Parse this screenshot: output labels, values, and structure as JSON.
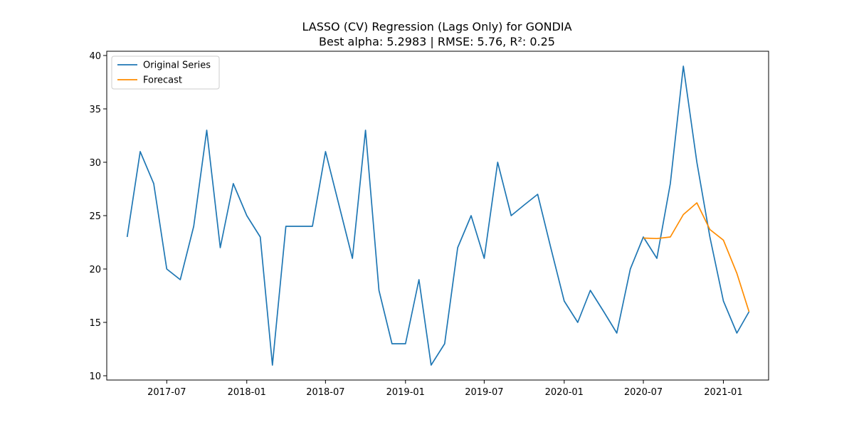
{
  "chart_data": {
    "type": "line",
    "title": "LASSO (CV) Regression (Lags Only) for GONDIA",
    "subtitle": "Best alpha: 5.2983 | RMSE: 5.76, R²: 0.25",
    "xlabel": "",
    "ylabel": "",
    "x_ticks": [
      "2017-07",
      "2018-01",
      "2018-07",
      "2019-01",
      "2019-07",
      "2020-01",
      "2020-07",
      "2021-01"
    ],
    "x_range": [
      "2017-02-13",
      "2021-04-15"
    ],
    "y_ticks": [
      10,
      15,
      20,
      25,
      30,
      35,
      40
    ],
    "ylim": [
      9.6,
      40.4
    ],
    "grid": false,
    "legend_position": "top-left",
    "series": [
      {
        "name": "Original Series",
        "color": "#1f77b4",
        "x": [
          "2017-04",
          "2017-05",
          "2017-06",
          "2017-07",
          "2017-08",
          "2017-09",
          "2017-10",
          "2017-11",
          "2017-12",
          "2018-01",
          "2018-02",
          "2018-03",
          "2018-04",
          "2018-05",
          "2018-06",
          "2018-07",
          "2018-08",
          "2018-09",
          "2018-10",
          "2018-11",
          "2018-12",
          "2019-01",
          "2019-02",
          "2019-03",
          "2019-04",
          "2019-05",
          "2019-06",
          "2019-07",
          "2019-08",
          "2019-09",
          "2019-10",
          "2019-11",
          "2019-12",
          "2020-01",
          "2020-02",
          "2020-03",
          "2020-04",
          "2020-05",
          "2020-06",
          "2020-07",
          "2020-08",
          "2020-09",
          "2020-10",
          "2020-11",
          "2020-12",
          "2021-01",
          "2021-02",
          "2021-03"
        ],
        "values": [
          23,
          31,
          28,
          20,
          19,
          24,
          33,
          22,
          28,
          25,
          23,
          11,
          24,
          24,
          24,
          31,
          26,
          21,
          33,
          18,
          13,
          13,
          19,
          11,
          13,
          22,
          25,
          21,
          30,
          25,
          26,
          27,
          22,
          17,
          15,
          18,
          16,
          14,
          20,
          23,
          21,
          28,
          39,
          30,
          23,
          17,
          14,
          16
        ]
      },
      {
        "name": "Forecast",
        "color": "#ff8c00",
        "x": [
          "2020-07",
          "2020-08",
          "2020-09",
          "2020-10",
          "2020-11",
          "2020-12",
          "2021-01",
          "2021-02",
          "2021-03"
        ],
        "values": [
          22.9,
          22.85,
          23.0,
          25.1,
          26.2,
          23.7,
          22.7,
          19.6,
          16.0
        ]
      }
    ]
  }
}
